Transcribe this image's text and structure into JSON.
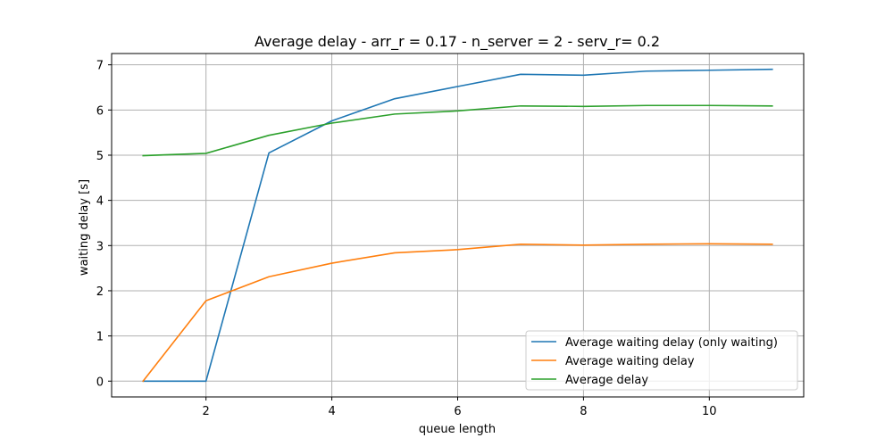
{
  "chart_data": {
    "type": "line",
    "title": "Average delay - arr_r = 0.17 - n_server = 2 - serv_r= 0.2",
    "xlabel": "queue length",
    "ylabel": "waiting delay [s]",
    "x": [
      1,
      2,
      3,
      4,
      5,
      6,
      7,
      8,
      9,
      10,
      11
    ],
    "xlim": [
      0.5,
      11.5
    ],
    "ylim": [
      -0.35,
      7.25
    ],
    "xticks": [
      2,
      4,
      6,
      8,
      10
    ],
    "yticks": [
      0,
      1,
      2,
      3,
      4,
      5,
      6,
      7
    ],
    "grid": true,
    "legend_position": "lower-right",
    "series": [
      {
        "name": "Average waiting delay (only waiting)",
        "color": "#1f77b4",
        "values": [
          0.0,
          0.0,
          5.05,
          5.76,
          6.25,
          6.52,
          6.79,
          6.77,
          6.86,
          6.88,
          6.9
        ]
      },
      {
        "name": "Average waiting delay",
        "color": "#ff7f0e",
        "values": [
          0.0,
          1.78,
          2.31,
          2.61,
          2.84,
          2.91,
          3.03,
          3.01,
          3.03,
          3.04,
          3.03
        ]
      },
      {
        "name": "Average delay",
        "color": "#2ca02c",
        "values": [
          4.99,
          5.04,
          5.44,
          5.71,
          5.91,
          5.98,
          6.09,
          6.08,
          6.1,
          6.1,
          6.09
        ]
      }
    ]
  }
}
